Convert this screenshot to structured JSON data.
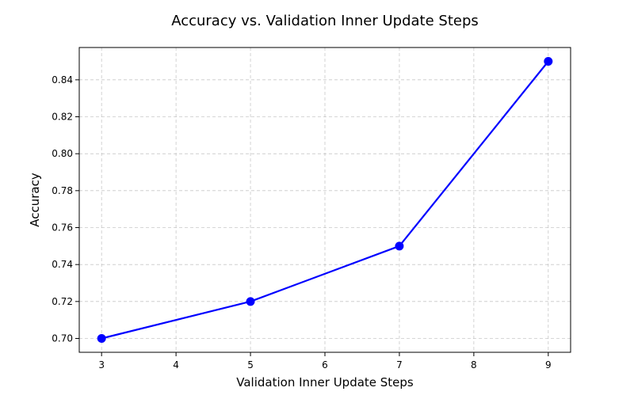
{
  "chart_data": {
    "type": "line",
    "title": "Accuracy vs. Validation Inner Update Steps",
    "xlabel": "Validation Inner Update Steps",
    "ylabel": "Accuracy",
    "x": [
      3,
      5,
      7,
      9
    ],
    "series": [
      {
        "values": [
          0.7,
          0.72,
          0.75,
          0.85
        ],
        "color": "#0000ff",
        "marker": "circle"
      }
    ],
    "xlim": [
      2.7,
      9.3
    ],
    "ylim": [
      0.6925,
      0.8575
    ],
    "xticks": [
      {
        "value": 3,
        "label": "3"
      },
      {
        "value": 4,
        "label": "4"
      },
      {
        "value": 5,
        "label": "5"
      },
      {
        "value": 6,
        "label": "6"
      },
      {
        "value": 7,
        "label": "7"
      },
      {
        "value": 8,
        "label": "8"
      },
      {
        "value": 9,
        "label": "9"
      }
    ],
    "yticks": [
      {
        "value": 0.7,
        "label": "0.70"
      },
      {
        "value": 0.72,
        "label": "0.72"
      },
      {
        "value": 0.74,
        "label": "0.74"
      },
      {
        "value": 0.76,
        "label": "0.76"
      },
      {
        "value": 0.78,
        "label": "0.78"
      },
      {
        "value": 0.8,
        "label": "0.80"
      },
      {
        "value": 0.82,
        "label": "0.82"
      },
      {
        "value": 0.84,
        "label": "0.84"
      }
    ],
    "grid": true,
    "grid_style": "dashed"
  }
}
